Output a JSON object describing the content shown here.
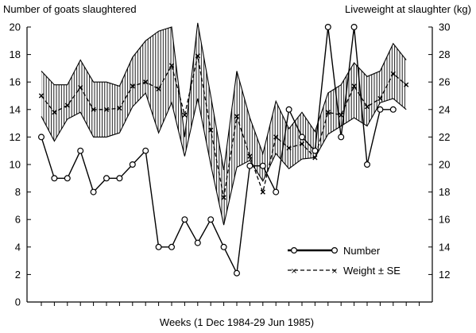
{
  "chart_data": {
    "type": "line",
    "y_left_label": "Number of goats slaughtered",
    "y_right_label": "Liveweight at slaughter (kg)",
    "xlabel": "Weeks (1 Dec 1984-29 Jun 1985)",
    "y_left_range": [
      0,
      20
    ],
    "y_left_ticks": [
      "0",
      "2",
      "4",
      "6",
      "8",
      "10",
      "12",
      "14",
      "16",
      "18",
      "20"
    ],
    "y_right_range": [
      10,
      30
    ],
    "y_right_ticks": [
      "12",
      "14",
      "16",
      "18",
      "20",
      "22",
      "24",
      "26",
      "28",
      "30"
    ],
    "x_weeks": [
      1,
      2,
      3,
      4,
      5,
      6,
      7,
      8,
      9,
      10,
      11,
      12,
      13,
      14,
      15,
      16,
      17,
      18,
      19,
      20,
      21,
      22,
      23,
      24,
      25,
      26,
      27,
      28,
      29,
      30,
      31,
      32,
      33,
      34,
      35
    ],
    "grid": false,
    "legend_position": "bottom-right",
    "series": [
      {
        "name": "Number",
        "axis": "left",
        "style": "solid line with open circles",
        "values": [
          12,
          9,
          9,
          11,
          8,
          9,
          9,
          10,
          11,
          4,
          4,
          6,
          4.3,
          6,
          4,
          2.1,
          9.9,
          9.9,
          8,
          14,
          12,
          11,
          20,
          12,
          20,
          10,
          14,
          14
        ]
      },
      {
        "name": "Weight ± SE",
        "axis": "right",
        "style": "dashed line with x markers and hatched SE band",
        "values": [
          25,
          23.8,
          24.3,
          25.6,
          24,
          24,
          24.1,
          25.7,
          26,
          25.5,
          27.2,
          23.6,
          27.9,
          22.5,
          17.6,
          23.5,
          20.6,
          18,
          22,
          21.2,
          21.5,
          20.5,
          23.8,
          23.6,
          25.7,
          24.2,
          24.8,
          26.6,
          25.8
        ],
        "upper": [
          26.8,
          25.8,
          25.8,
          27.6,
          26,
          26,
          25.7,
          27.8,
          29,
          29.7,
          30,
          22,
          30.3,
          25,
          19.6,
          26.8,
          23.4,
          20.8,
          24.6,
          22.6,
          23.8,
          22.4,
          25.2,
          25.8,
          27.4,
          26.4,
          26.8,
          28.8,
          27.6
        ],
        "lower": [
          23.5,
          21.7,
          23.3,
          23.8,
          22,
          22,
          22.3,
          24.2,
          25.2,
          22.3,
          24.5,
          20.6,
          24.8,
          20,
          15.6,
          19.8,
          20.3,
          18.8,
          20.8,
          19.7,
          20.4,
          20.5,
          22.2,
          22.8,
          23.4,
          22.8,
          24.5,
          24.8,
          24
        ]
      }
    ]
  }
}
